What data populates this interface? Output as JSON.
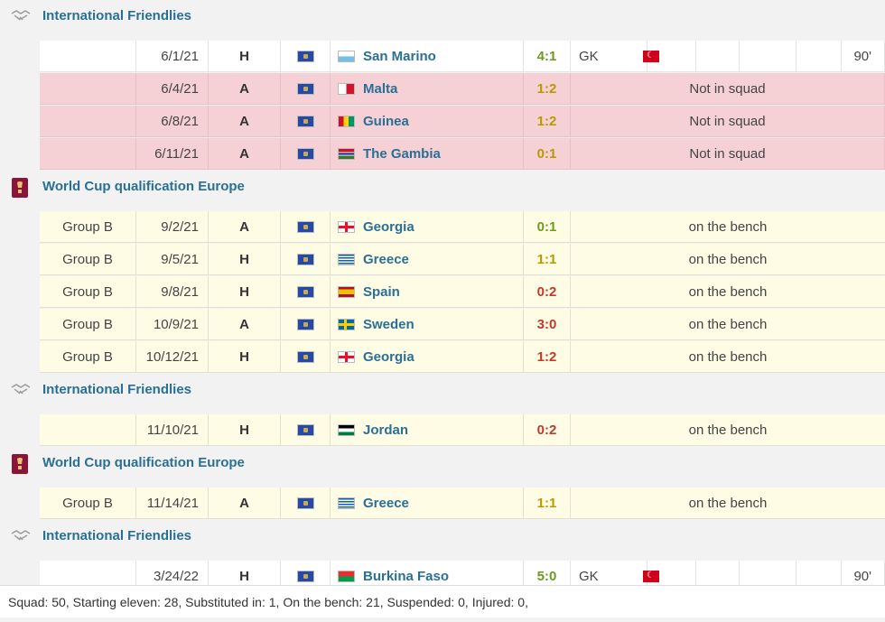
{
  "groups": [
    {
      "competition": "International Friendlies",
      "icon": "handshake-icon",
      "rows": [
        {
          "round": "",
          "date": "6/1/21",
          "venue": "H",
          "opponent": "San Marino",
          "result": "4:1",
          "result_type": "win",
          "position": "GK",
          "minutes": "90'",
          "note": "",
          "style": "white",
          "opp_flag": "san-marino"
        },
        {
          "round": "",
          "date": "6/4/21",
          "venue": "A",
          "opponent": "Malta",
          "result": "1:2",
          "result_type": "draw",
          "note": "Not in squad",
          "style": "red",
          "opp_flag": "malta"
        },
        {
          "round": "",
          "date": "6/8/21",
          "venue": "A",
          "opponent": "Guinea",
          "result": "1:2",
          "result_type": "draw",
          "note": "Not in squad",
          "style": "red",
          "opp_flag": "guinea"
        },
        {
          "round": "",
          "date": "6/11/21",
          "venue": "A",
          "opponent": "The Gambia",
          "result": "0:1",
          "result_type": "draw",
          "note": "Not in squad",
          "style": "red",
          "opp_flag": "gambia"
        }
      ]
    },
    {
      "competition": "World Cup qualification Europe",
      "icon": "world-cup-icon",
      "rows": [
        {
          "round": "Group B",
          "date": "9/2/21",
          "venue": "A",
          "opponent": "Georgia",
          "result": "0:1",
          "result_type": "win",
          "note": "on the bench",
          "style": "yellow",
          "opp_flag": "georgia"
        },
        {
          "round": "Group B",
          "date": "9/5/21",
          "venue": "H",
          "opponent": "Greece",
          "result": "1:1",
          "result_type": "draw",
          "note": "on the bench",
          "style": "yellow",
          "opp_flag": "greece"
        },
        {
          "round": "Group B",
          "date": "9/8/21",
          "venue": "H",
          "opponent": "Spain",
          "result": "0:2",
          "result_type": "loss",
          "note": "on the bench",
          "style": "yellow",
          "opp_flag": "spain"
        },
        {
          "round": "Group B",
          "date": "10/9/21",
          "venue": "A",
          "opponent": "Sweden",
          "result": "3:0",
          "result_type": "loss",
          "note": "on the bench",
          "style": "yellow",
          "opp_flag": "sweden"
        },
        {
          "round": "Group B",
          "date": "10/12/21",
          "venue": "H",
          "opponent": "Georgia",
          "result": "1:2",
          "result_type": "loss",
          "note": "on the bench",
          "style": "yellow",
          "opp_flag": "georgia"
        }
      ]
    },
    {
      "competition": "International Friendlies",
      "icon": "handshake-icon",
      "rows": [
        {
          "round": "",
          "date": "11/10/21",
          "venue": "H",
          "opponent": "Jordan",
          "result": "0:2",
          "result_type": "loss",
          "note": "on the bench",
          "style": "yellow",
          "opp_flag": "jordan"
        }
      ]
    },
    {
      "competition": "World Cup qualification Europe",
      "icon": "world-cup-icon",
      "rows": [
        {
          "round": "Group B",
          "date": "11/14/21",
          "venue": "A",
          "opponent": "Greece",
          "result": "1:1",
          "result_type": "draw",
          "note": "on the bench",
          "style": "yellow",
          "opp_flag": "greece"
        }
      ]
    },
    {
      "competition": "International Friendlies",
      "icon": "handshake-icon",
      "rows": [
        {
          "round": "",
          "date": "3/24/22",
          "venue": "H",
          "opponent": "Burkina Faso",
          "result": "5:0",
          "result_type": "win",
          "position": "GK",
          "minutes": "90'",
          "note": "",
          "style": "white",
          "opp_flag": "burkina-faso"
        }
      ]
    }
  ],
  "footer": {
    "summary": "Squad: 50, Starting eleven: 28, Substituted in: 1, On the bench: 21, Suspended: 0, Injured: 0,"
  },
  "colors": {
    "link": "#2a6f96",
    "win": "#6c9b1e",
    "loss": "#c0392b",
    "draw": "#b89a00",
    "not_in_squad_row": "#f5d0d5",
    "bench_row": "#fffce6"
  }
}
